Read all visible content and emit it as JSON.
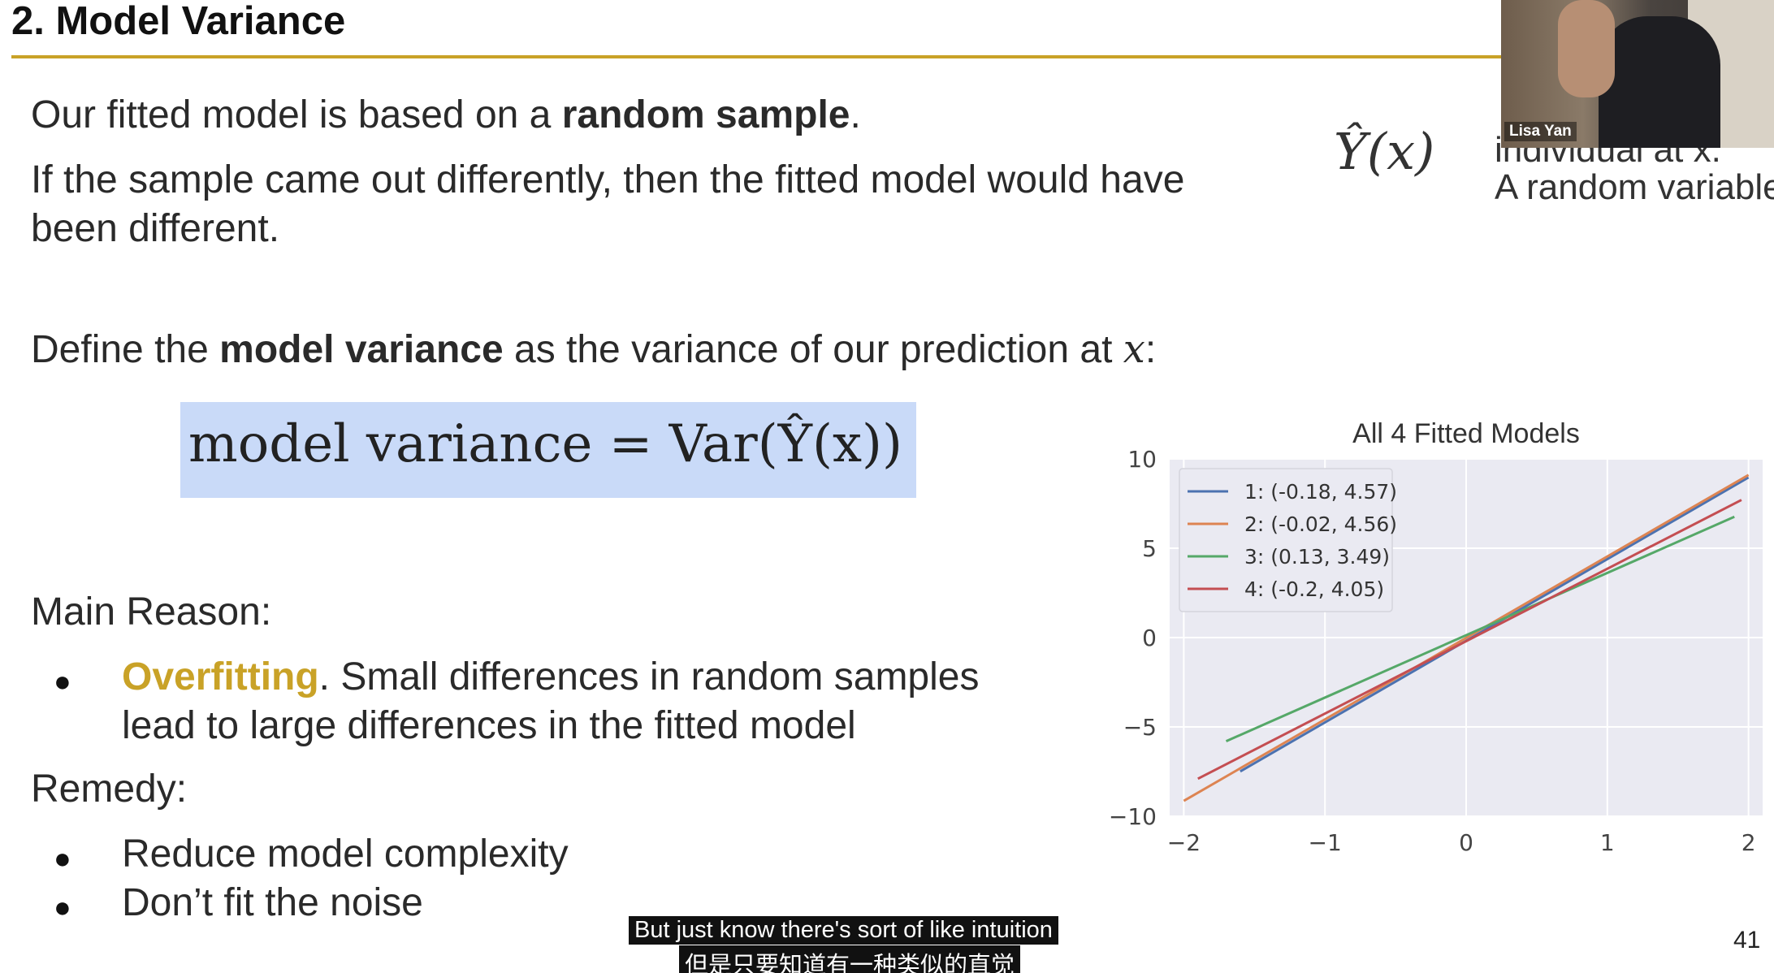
{
  "slide": {
    "title": "2. Model Variance",
    "line1_a": "Our fitted model is based on a ",
    "line1_b": "random sample",
    "line1_c": ".",
    "line2": "If the sample came out differently, then the fitted model would have",
    "line3": "been different.",
    "define_a": "Define the ",
    "define_b": "model variance",
    "define_c": " as the variance of our prediction at ",
    "define_x": "x",
    "define_colon": ":",
    "formula": "model variance = Var(Ŷ(x))",
    "main_reason": "Main Reason:",
    "overfitting_word": "Overfitting",
    "overfitting_rest1": ". Small differences in random samples",
    "overfitting_rest2": "lead to large differences in the fitted model",
    "remedy": "Remedy:",
    "remedy_items": [
      "Reduce model complexity",
      "Don’t fit the noise"
    ],
    "bullet_glyph": "●",
    "right_formula": "Ŷ(x)",
    "right_text1": "individual at x.",
    "right_text2": "A random variable",
    "page_number": "41"
  },
  "video": {
    "speaker_name": "Lisa Yan"
  },
  "subtitles": {
    "english": "But just know there's sort of like intuition",
    "chinese": "但是只要知道有一种类似的直觉"
  },
  "colors": {
    "accent_gold": "#c9a227",
    "formula_bg": "#c9daf8",
    "plot_bg": "#eaeaf2"
  },
  "chart_data": {
    "type": "line",
    "title": "All 4 Fitted Models",
    "xlabel": "",
    "ylabel": "",
    "xlim": [
      -2.1,
      2.1
    ],
    "ylim": [
      -10,
      10
    ],
    "xticks": [
      "−2",
      "−1",
      "0",
      "1",
      "2"
    ],
    "yticks": [
      "10",
      "5",
      "0",
      "−5",
      "−10"
    ],
    "grid": true,
    "legend_placement": "top-left",
    "series": [
      {
        "name": "1: (-0.18, 4.57)",
        "color": "#4c72b0",
        "x": [
          -1.6,
          2.0
        ],
        "y": [
          -7.49,
          8.96
        ]
      },
      {
        "name": "2: (-0.02, 4.56)",
        "color": "#dd8452",
        "x": [
          -2.0,
          2.0
        ],
        "y": [
          -9.14,
          9.1
        ]
      },
      {
        "name": "3: (0.13, 3.49)",
        "color": "#55a868",
        "x": [
          -1.7,
          1.9
        ],
        "y": [
          -5.8,
          6.76
        ]
      },
      {
        "name": "4: (-0.2, 4.05)",
        "color": "#c44e52",
        "x": [
          -1.9,
          1.95
        ],
        "y": [
          -7.9,
          7.7
        ]
      }
    ]
  }
}
